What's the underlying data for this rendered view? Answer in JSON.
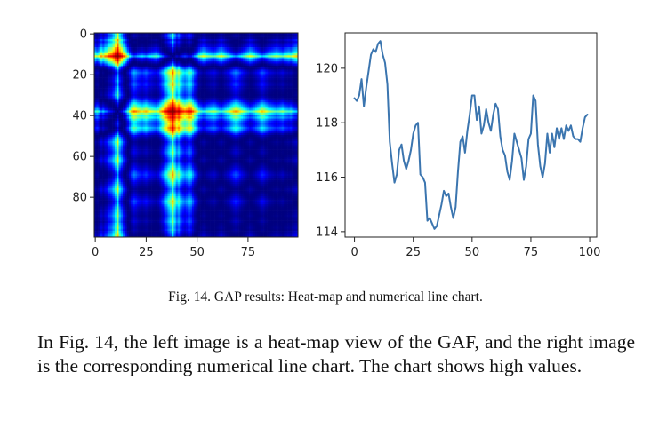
{
  "caption": "Fig. 14.  GAP results: Heat-map and numerical line chart.",
  "body_text": "In Fig. 14, the left image is a heat-map view of the GAF, and the right image is the corresponding numerical line chart. The chart shows high values.",
  "colors": {
    "line": "#3b75af",
    "axis": "#222222"
  },
  "chart_data": [
    {
      "type": "heatmap",
      "colormap": "jet",
      "x_ticks": [
        0,
        25,
        50,
        75
      ],
      "y_ticks": [
        0,
        20,
        40,
        60,
        80
      ],
      "xlim": [
        0,
        99
      ],
      "ylim": [
        99,
        0
      ],
      "matrix_size": 100,
      "series": [
        0.2,
        0.1,
        0.25,
        0.45,
        0.35,
        0.5,
        0.55,
        0.7,
        0.75,
        0.85,
        0.95,
        1.0,
        0.9,
        0.8,
        0.6,
        0.4,
        0.1,
        -0.2,
        -0.45,
        -0.55,
        -0.5,
        -0.4,
        -0.35,
        -0.3,
        -0.35,
        -0.4,
        -0.3,
        -0.25,
        -0.2,
        -0.15,
        -0.1,
        -0.2,
        -0.4,
        -0.55,
        -0.7,
        -0.8,
        -0.9,
        -0.95,
        -1.0,
        -0.95,
        -0.85,
        -0.9,
        -0.8,
        -0.7,
        -0.65,
        -0.7,
        -0.8,
        -0.75,
        -0.6,
        -0.4,
        -0.2,
        0.0,
        0.1,
        0.2,
        0.15,
        0.05,
        0.0,
        -0.05,
        -0.1,
        -0.05,
        0.05,
        0.15,
        0.2,
        0.1,
        0.0,
        -0.1,
        -0.2,
        -0.3,
        -0.4,
        -0.45,
        -0.4,
        -0.3,
        -0.2,
        -0.1,
        0.0,
        0.1,
        0.2,
        0.15,
        0.05,
        -0.05,
        -0.15,
        -0.25,
        -0.35,
        -0.3,
        -0.2,
        -0.1,
        -0.05,
        0.0,
        0.05,
        0.1,
        0.05,
        0.0,
        -0.05,
        0.05,
        0.1,
        0.15,
        0.1,
        0.2,
        0.3,
        0.35
      ]
    },
    {
      "type": "line",
      "xlim": [
        -4,
        103
      ],
      "ylim": [
        113.8,
        121.3
      ],
      "x_ticks": [
        0,
        25,
        50,
        75,
        100
      ],
      "y_ticks": [
        114,
        116,
        118,
        120
      ],
      "series": [
        {
          "x": [
            0,
            1,
            2,
            3,
            4,
            5,
            6,
            7,
            8,
            9,
            10,
            11,
            12,
            13,
            14,
            15,
            16,
            17,
            18,
            19,
            20,
            21,
            22,
            23,
            24,
            25,
            26,
            27,
            28,
            29,
            30,
            31,
            32,
            33,
            34,
            35,
            36,
            37,
            38,
            39,
            40,
            41,
            42,
            43,
            44,
            45,
            46,
            47,
            48,
            49,
            50,
            51,
            52,
            53,
            54,
            55,
            56,
            57,
            58,
            59,
            60,
            61,
            62,
            63,
            64,
            65,
            66,
            67,
            68,
            69,
            70,
            71,
            72,
            73,
            74,
            75,
            76,
            77,
            78,
            79,
            80,
            81,
            82,
            83,
            84,
            85,
            86,
            87,
            88,
            89,
            90,
            91,
            92,
            93,
            94,
            95,
            96,
            97,
            98,
            99
          ],
          "y": [
            118.9,
            118.8,
            119.0,
            119.6,
            118.6,
            119.3,
            119.9,
            120.5,
            120.7,
            120.6,
            120.9,
            121.0,
            120.5,
            120.2,
            119.4,
            117.3,
            116.5,
            115.8,
            116.1,
            117.0,
            117.2,
            116.6,
            116.3,
            116.6,
            117.0,
            117.6,
            117.9,
            118.0,
            116.1,
            116.0,
            115.8,
            114.4,
            114.5,
            114.3,
            114.1,
            114.2,
            114.6,
            115.0,
            115.5,
            115.3,
            115.4,
            114.9,
            114.5,
            114.9,
            116.2,
            117.3,
            117.5,
            116.9,
            117.7,
            118.3,
            119.0,
            119.0,
            118.1,
            118.6,
            117.6,
            117.9,
            118.5,
            118.0,
            117.7,
            118.3,
            118.7,
            118.5,
            117.5,
            117.0,
            116.8,
            116.2,
            115.9,
            116.6,
            117.6,
            117.3,
            117.0,
            116.7,
            115.9,
            116.4,
            117.4,
            117.6,
            119.0,
            118.8,
            117.2,
            116.4,
            116.0,
            116.5,
            117.6,
            116.9,
            117.6,
            117.1,
            117.8,
            117.4,
            117.8,
            117.4,
            117.9,
            117.7,
            117.9,
            117.5,
            117.4,
            117.4,
            117.3,
            117.8,
            118.2,
            118.3
          ]
        }
      ]
    }
  ]
}
